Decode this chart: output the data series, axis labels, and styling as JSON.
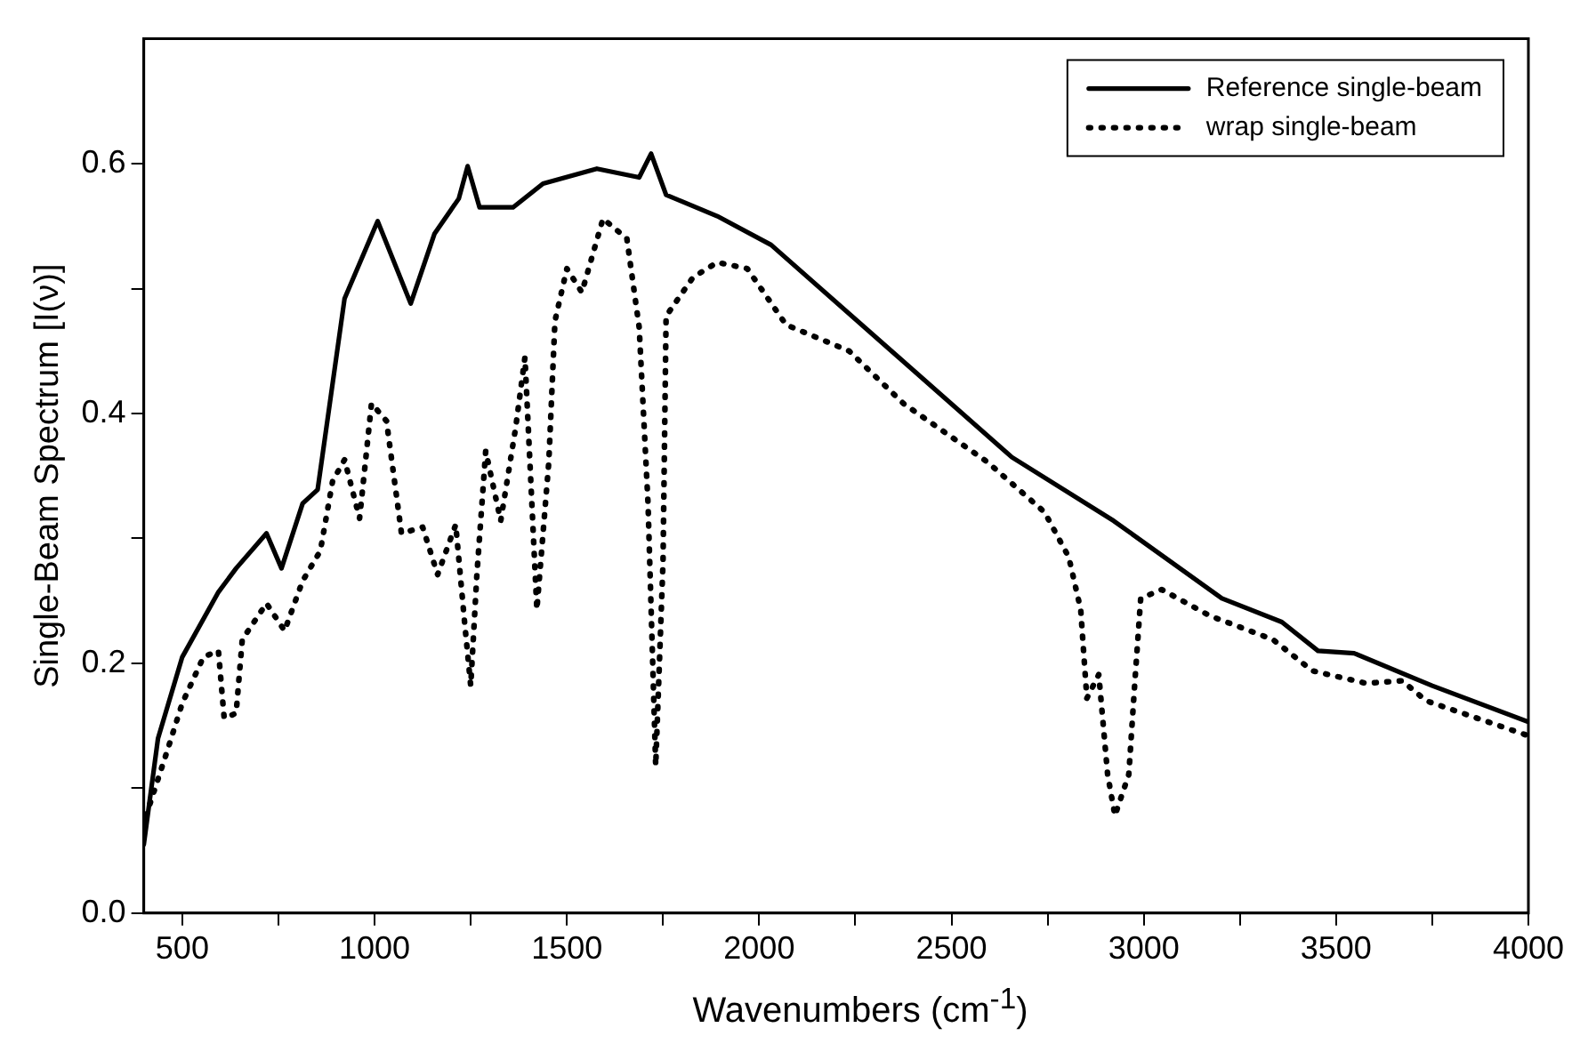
{
  "chart_data": {
    "type": "line",
    "xlabel": "Wavenumbers (cm$^{-1}$)",
    "ylabel": "Single-Beam Spectrum [I(ν)]",
    "xlim": [
      400,
      4000
    ],
    "xticks": [
      500,
      {
        "value": 750,
        "label": null
      },
      1000,
      {
        "value": 1250,
        "label": null
      },
      1500,
      {
        "value": 1750,
        "label": null
      },
      2000,
      {
        "value": 2250,
        "label": null
      },
      2500,
      {
        "value": 2750,
        "label": null
      },
      3000,
      {
        "value": 3250,
        "label": null
      },
      3500,
      {
        "value": 3750,
        "label": null
      },
      4000
    ],
    "ylim": [
      0,
      0.7
    ],
    "yticks": [
      "0.0",
      {
        "value": 0.1,
        "label": null
      },
      0.2,
      {
        "value": 0.3,
        "label": null
      },
      0.4,
      {
        "value": 0.5,
        "label": null
      },
      0.6
    ],
    "grid": false,
    "legend": "top right",
    "marker": "none",
    "series": [
      {
        "name": "Reference single-beam",
        "color": "#000000",
        "line_style": "solid",
        "x": [
          400,
          437,
          500,
          594,
          640,
          719,
          758,
          813,
          852,
          922,
          1008,
          1094,
          1156,
          1219,
          1242,
          1273,
          1360,
          1438,
          1578,
          1688,
          1719,
          1758,
          1797,
          1891,
          2031,
          2344,
          2657,
          2922,
          3203,
          3359,
          3453,
          3547,
          3750,
          4000
        ],
        "values": [
          0.055,
          0.14,
          0.205,
          0.257,
          0.276,
          0.304,
          0.276,
          0.328,
          0.339,
          0.492,
          0.554,
          0.488,
          0.544,
          0.572,
          0.598,
          0.565,
          0.565,
          0.584,
          0.596,
          0.589,
          0.608,
          0.575,
          0.57,
          0.558,
          0.535,
          0.45,
          0.365,
          0.314,
          0.252,
          0.233,
          0.21,
          0.208,
          0.182,
          0.153
        ]
      },
      {
        "name": "wrap single-beam",
        "color": "#000000",
        "line_style": "dotted",
        "x": [
          406,
          461,
          500,
          555,
          594,
          609,
          640,
          656,
          719,
          766,
          813,
          859,
          891,
          922,
          961,
          992,
          1031,
          1070,
          1125,
          1164,
          1211,
          1234,
          1250,
          1266,
          1289,
          1328,
          1367,
          1391,
          1422,
          1453,
          1469,
          1500,
          1539,
          1594,
          1656,
          1688,
          1711,
          1731,
          1750,
          1758,
          1828,
          1891,
          1969,
          2070,
          2234,
          2375,
          2594,
          2742,
          2805,
          2836,
          2852,
          2883,
          2906,
          2925,
          2961,
          2977,
          2992,
          3047,
          3172,
          3336,
          3438,
          3578,
          3672,
          3734,
          4000
        ],
        "values": [
          0.078,
          0.13,
          0.168,
          0.205,
          0.21,
          0.156,
          0.16,
          0.219,
          0.248,
          0.226,
          0.266,
          0.29,
          0.346,
          0.363,
          0.316,
          0.408,
          0.394,
          0.304,
          0.309,
          0.271,
          0.311,
          0.233,
          0.182,
          0.271,
          0.37,
          0.314,
          0.389,
          0.445,
          0.243,
          0.361,
          0.474,
          0.516,
          0.497,
          0.556,
          0.54,
          0.469,
          0.328,
          0.118,
          0.281,
          0.478,
          0.509,
          0.521,
          0.516,
          0.471,
          0.45,
          0.408,
          0.361,
          0.321,
          0.285,
          0.243,
          0.172,
          0.191,
          0.111,
          0.078,
          0.111,
          0.186,
          0.252,
          0.259,
          0.238,
          0.219,
          0.194,
          0.184,
          0.186,
          0.17,
          0.142
        ]
      }
    ]
  }
}
